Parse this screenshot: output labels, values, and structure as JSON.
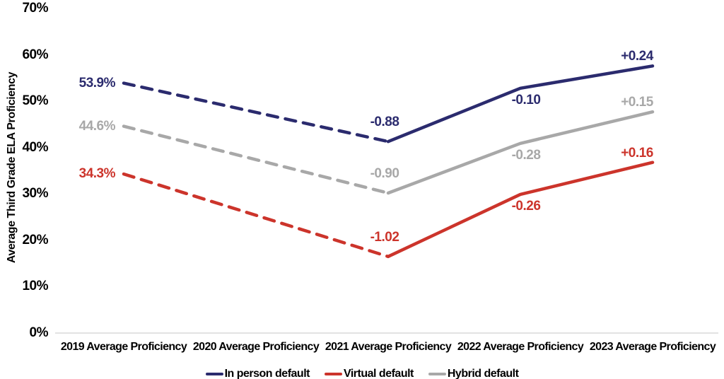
{
  "chart_data": {
    "type": "line",
    "title": "",
    "xlabel": "",
    "ylabel": "Average Third Grade ELA Proficiency",
    "categories": [
      "2019 Average Proficiency",
      "2020 Average Proficiency",
      "2021 Average Proficiency",
      "2022 Average Proficiency",
      "2023 Average Proficiency"
    ],
    "category_years": [
      2019,
      2020,
      2021,
      2022,
      2023
    ],
    "ylim": [
      0,
      70
    ],
    "ytick_values": [
      0,
      10,
      20,
      30,
      40,
      50,
      60,
      70
    ],
    "ytick_labels": [
      "0%",
      "10%",
      "20%",
      "30%",
      "40%",
      "50%",
      "60%",
      "70%"
    ],
    "grid": "off",
    "legend_position": "bottom-center",
    "axis_line_color": "#d9d9d9",
    "series": [
      {
        "name": "In person default",
        "color": "#2b2b6e",
        "x_years": [
          2019,
          2021,
          2022,
          2023
        ],
        "values": [
          53.9,
          41.3,
          52.8,
          57.6
        ],
        "dashed_until_year": 2021,
        "point_labels": [
          "53.9%",
          "-0.88",
          "-0.10",
          "+0.24"
        ]
      },
      {
        "name": "Virtual default",
        "color": "#cc342b",
        "x_years": [
          2019,
          2021,
          2022,
          2023
        ],
        "values": [
          34.3,
          16.5,
          29.9,
          36.8
        ],
        "dashed_until_year": 2021,
        "point_labels": [
          "34.3%",
          "-1.02",
          "-0.26",
          "+0.16"
        ]
      },
      {
        "name": "Hybrid default",
        "color": "#a8a8a8",
        "x_years": [
          2019,
          2021,
          2022,
          2023
        ],
        "values": [
          44.6,
          30.2,
          40.9,
          47.7
        ],
        "dashed_until_year": 2021,
        "point_labels": [
          "44.6%",
          "-0.90",
          "-0.28",
          "+0.15"
        ]
      }
    ],
    "legend_order": [
      "In person default",
      "Virtual default",
      "Hybrid default"
    ]
  }
}
